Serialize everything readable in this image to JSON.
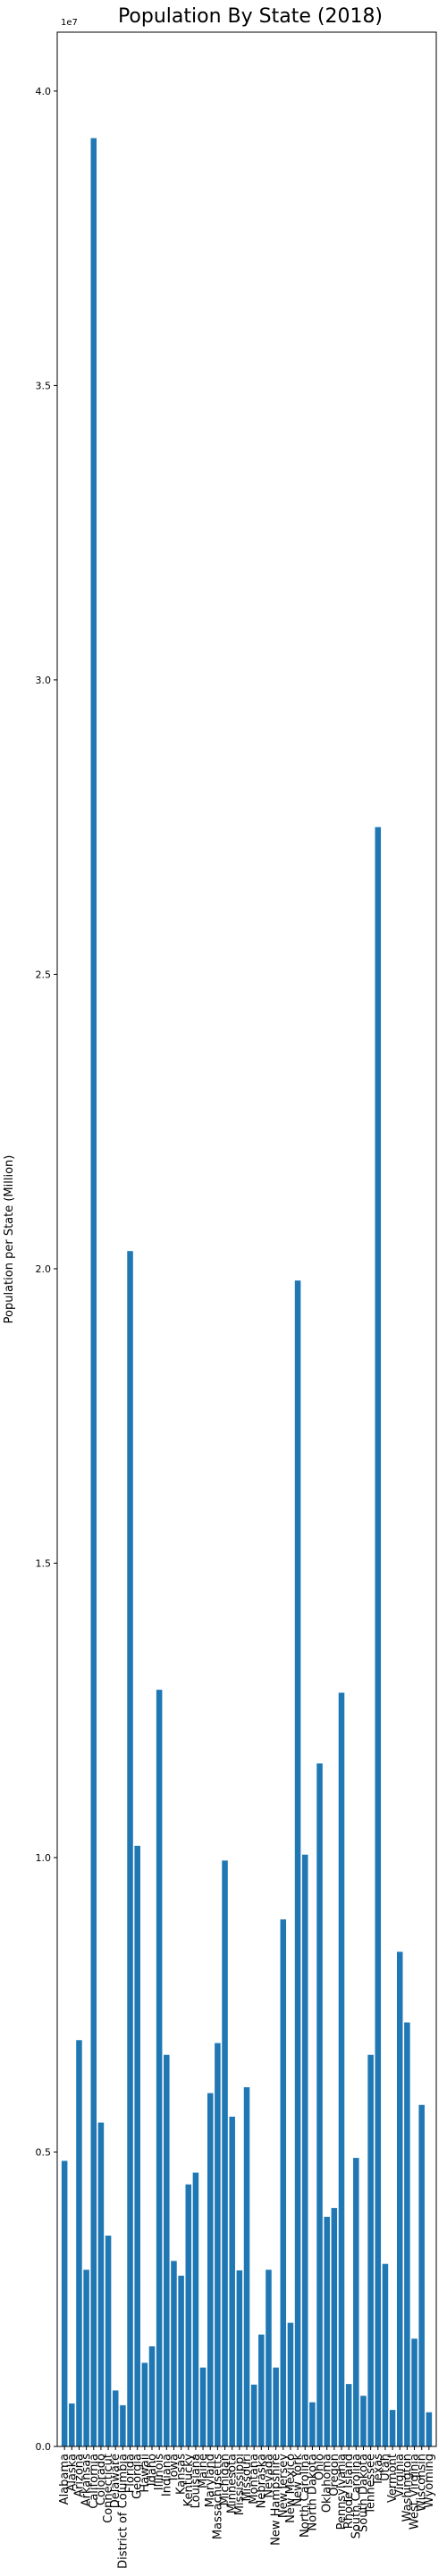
{
  "chart_data": {
    "type": "bar",
    "title": "Population By State (2018)",
    "ylabel": "Population per State (Million)",
    "xlabel": "",
    "offset_label": "1e7",
    "ylim": [
      0,
      41000000
    ],
    "yticks": [
      0,
      5000000,
      10000000,
      15000000,
      20000000,
      25000000,
      30000000,
      35000000,
      40000000
    ],
    "ytick_labels": [
      "0.0",
      "0.5",
      "1.0",
      "1.5",
      "2.0",
      "2.5",
      "3.0",
      "3.5",
      "4.0"
    ],
    "bar_color": "#1f77b4",
    "grid": false,
    "categories": [
      "Alabama",
      "Alaska",
      "Arizona",
      "Arkansas",
      "California",
      "Colorado",
      "Connecticut",
      "Delaware",
      "District of Columbia",
      "Florida",
      "Georgia",
      "Hawaii",
      "Idaho",
      "Illinois",
      "Indiana",
      "Iowa",
      "Kansas",
      "Kentucky",
      "Louisiana",
      "Maine",
      "Maryland",
      "Massachusetts",
      "Michigan",
      "Minnesota",
      "Mississippi",
      "Missouri",
      "Montana",
      "Nebraska",
      "Nevada",
      "New Hampshire",
      "New Jersey",
      "New Mexico",
      "New York",
      "North Carolina",
      "North Dakota",
      "Ohio",
      "Oklahoma",
      "Oregon",
      "Pennsylvania",
      "Rhode Island",
      "South Carolina",
      "South Dakota",
      "Tennessee",
      "Texas",
      "Utah",
      "Vermont",
      "Virginia",
      "Washington",
      "West Virginia",
      "Wisconsin",
      "Wyoming"
    ],
    "tick_labels": [
      "Alabama",
      "Alaska",
      "Arizona",
      "Arkansas",
      "California",
      "Colorado",
      "Connecticut",
      "Delaware",
      "District of Columbia",
      "Florida",
      "Georgia",
      "Hawaii",
      "Idaho",
      "Illinois",
      "Indiana",
      "Iowa",
      "Kansas",
      "Kentucky",
      "Louisiana",
      "Maine",
      "Maryland",
      "Massachusetts",
      "Michigan",
      "Minnesota",
      "Mississippi",
      "Missouri",
      "Montana",
      "Nebraska",
      "Nevada",
      "New Hampshire",
      "New Jersey",
      "New Mexico",
      "New York",
      "North Carolina",
      "North Dakota",
      "Ohio",
      "Oklahoma",
      "Oregon",
      "Pennsylvania",
      "Rhode Island",
      "South Carolina",
      "South Dakota",
      "Tennessee",
      "Texas",
      "Utah",
      "Vermont",
      "Virginia",
      "Washington",
      "West Virginia",
      "Wisconsin",
      "Wyoming"
    ],
    "values": [
      4850000,
      730000,
      6900000,
      3000000,
      39200000,
      5500000,
      3580000,
      950000,
      700000,
      20300000,
      10200000,
      1420000,
      1700000,
      12850000,
      6650000,
      3150000,
      2900000,
      4450000,
      4650000,
      1340000,
      6000000,
      6850000,
      9950000,
      5600000,
      2990000,
      6100000,
      1050000,
      1900000,
      3000000,
      1340000,
      8950000,
      2100000,
      19800000,
      10050000,
      750000,
      11600000,
      3900000,
      4050000,
      12800000,
      1060000,
      4900000,
      860000,
      6650000,
      27500000,
      3100000,
      620000,
      8400000,
      7200000,
      1830000,
      5800000,
      580000
    ]
  }
}
